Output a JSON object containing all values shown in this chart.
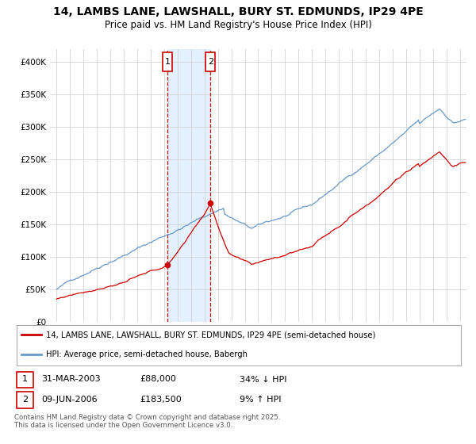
{
  "title": "14, LAMBS LANE, LAWSHALL, BURY ST. EDMUNDS, IP29 4PE",
  "subtitle": "Price paid vs. HM Land Registry's House Price Index (HPI)",
  "red_label": "14, LAMBS LANE, LAWSHALL, BURY ST. EDMUNDS, IP29 4PE (semi-detached house)",
  "blue_label": "HPI: Average price, semi-detached house, Babergh",
  "footnote": "Contains HM Land Registry data © Crown copyright and database right 2025.\nThis data is licensed under the Open Government Licence v3.0.",
  "sale1_date": "31-MAR-2003",
  "sale1_price": 88000,
  "sale1_hpi": "34% ↓ HPI",
  "sale1_year": 2003.25,
  "sale2_date": "09-JUN-2006",
  "sale2_price": 183500,
  "sale2_hpi": "9% ↑ HPI",
  "sale2_year": 2006.44,
  "ylim": [
    0,
    420000
  ],
  "xlim": [
    1994.5,
    2025.5
  ],
  "yticks": [
    0,
    50000,
    100000,
    150000,
    200000,
    250000,
    300000,
    350000,
    400000
  ],
  "ytick_labels": [
    "£0",
    "£50K",
    "£100K",
    "£150K",
    "£200K",
    "£250K",
    "£300K",
    "£350K",
    "£400K"
  ],
  "red_color": "#cc0000",
  "blue_color": "#6699cc",
  "background_color": "#ffffff",
  "grid_color": "#cccccc",
  "shade_color": "#ddeeff"
}
